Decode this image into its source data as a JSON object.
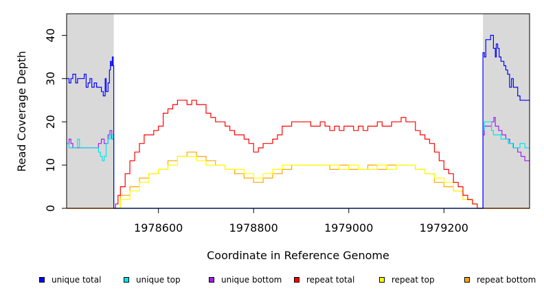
{
  "chart_data": {
    "type": "line",
    "xlabel": "Coordinate in Reference Genome",
    "ylabel": "Read Coverage Depth",
    "xlim": [
      1978407,
      1979380
    ],
    "ylim": [
      0,
      45
    ],
    "x_ticks": [
      1978600,
      1978800,
      1979000,
      1979200
    ],
    "y_ticks": [
      0,
      10,
      20,
      30,
      40
    ],
    "shaded_regions": [
      [
        1978407,
        1978506
      ],
      [
        1979282,
        1979380
      ]
    ],
    "shade_color": "#d9d9d9",
    "grid": false,
    "legend_position": "bottom",
    "series": [
      {
        "name": "unique total",
        "color": "#0000ff",
        "points": [
          [
            1978407,
            30
          ],
          [
            1978412,
            29
          ],
          [
            1978416,
            30
          ],
          [
            1978420,
            31
          ],
          [
            1978426,
            29
          ],
          [
            1978430,
            30
          ],
          [
            1978440,
            30
          ],
          [
            1978444,
            31
          ],
          [
            1978448,
            28
          ],
          [
            1978452,
            29
          ],
          [
            1978456,
            30
          ],
          [
            1978460,
            28
          ],
          [
            1978465,
            29
          ],
          [
            1978470,
            28
          ],
          [
            1978476,
            28
          ],
          [
            1978480,
            27
          ],
          [
            1978484,
            26
          ],
          [
            1978488,
            30
          ],
          [
            1978490,
            27
          ],
          [
            1978494,
            29
          ],
          [
            1978497,
            32
          ],
          [
            1978499,
            34
          ],
          [
            1978501,
            33
          ],
          [
            1978503,
            35
          ],
          [
            1978505,
            33
          ],
          [
            1978506,
            0
          ],
          [
            1979282,
            0
          ],
          [
            1979282,
            36
          ],
          [
            1979285,
            35
          ],
          [
            1979288,
            39
          ],
          [
            1979296,
            39
          ],
          [
            1979298,
            40
          ],
          [
            1979304,
            37
          ],
          [
            1979308,
            35
          ],
          [
            1979310,
            38
          ],
          [
            1979313,
            37
          ],
          [
            1979316,
            35
          ],
          [
            1979320,
            34
          ],
          [
            1979326,
            33
          ],
          [
            1979330,
            32
          ],
          [
            1979334,
            31
          ],
          [
            1979338,
            28
          ],
          [
            1979342,
            30
          ],
          [
            1979346,
            28
          ],
          [
            1979350,
            28
          ],
          [
            1979355,
            26
          ],
          [
            1979360,
            25
          ],
          [
            1979380,
            25
          ]
        ]
      },
      {
        "name": "unique top",
        "color": "#00e5ee",
        "points": [
          [
            1978407,
            15
          ],
          [
            1978412,
            14
          ],
          [
            1978430,
            16
          ],
          [
            1978434,
            14
          ],
          [
            1978470,
            14
          ],
          [
            1978474,
            13
          ],
          [
            1978478,
            12
          ],
          [
            1978482,
            11
          ],
          [
            1978486,
            12
          ],
          [
            1978490,
            15
          ],
          [
            1978494,
            16
          ],
          [
            1978497,
            17
          ],
          [
            1978500,
            16
          ],
          [
            1978503,
            17
          ],
          [
            1978506,
            0
          ],
          [
            1979282,
            0
          ],
          [
            1979282,
            18
          ],
          [
            1979285,
            20
          ],
          [
            1979300,
            18
          ],
          [
            1979304,
            17
          ],
          [
            1979320,
            16
          ],
          [
            1979335,
            15
          ],
          [
            1979345,
            14
          ],
          [
            1979360,
            15
          ],
          [
            1979370,
            14
          ],
          [
            1979380,
            14
          ]
        ]
      },
      {
        "name": "unique bottom",
        "color": "#a020f0",
        "points": [
          [
            1978407,
            15
          ],
          [
            1978412,
            16
          ],
          [
            1978416,
            15
          ],
          [
            1978420,
            14
          ],
          [
            1978470,
            14
          ],
          [
            1978474,
            15
          ],
          [
            1978480,
            16
          ],
          [
            1978486,
            15
          ],
          [
            1978490,
            15
          ],
          [
            1978494,
            17
          ],
          [
            1978498,
            18
          ],
          [
            1978502,
            16
          ],
          [
            1978506,
            0
          ],
          [
            1979282,
            0
          ],
          [
            1979282,
            17
          ],
          [
            1979285,
            19
          ],
          [
            1979300,
            20
          ],
          [
            1979305,
            21
          ],
          [
            1979308,
            19
          ],
          [
            1979315,
            18
          ],
          [
            1979322,
            17
          ],
          [
            1979330,
            16
          ],
          [
            1979338,
            15
          ],
          [
            1979346,
            14
          ],
          [
            1979355,
            13
          ],
          [
            1979362,
            12
          ],
          [
            1979370,
            11
          ],
          [
            1979380,
            11
          ]
        ]
      },
      {
        "name": "repeat total",
        "color": "#ff0000",
        "points": [
          [
            1978407,
            0
          ],
          [
            1978506,
            0
          ],
          [
            1978510,
            1
          ],
          [
            1978515,
            3
          ],
          [
            1978520,
            5
          ],
          [
            1978530,
            8
          ],
          [
            1978540,
            11
          ],
          [
            1978550,
            13
          ],
          [
            1978560,
            15
          ],
          [
            1978570,
            17
          ],
          [
            1978580,
            17
          ],
          [
            1978590,
            18
          ],
          [
            1978600,
            19
          ],
          [
            1978610,
            22
          ],
          [
            1978620,
            23
          ],
          [
            1978630,
            24
          ],
          [
            1978640,
            25
          ],
          [
            1978650,
            25
          ],
          [
            1978660,
            24
          ],
          [
            1978670,
            25
          ],
          [
            1978680,
            24
          ],
          [
            1978690,
            24
          ],
          [
            1978700,
            22
          ],
          [
            1978710,
            21
          ],
          [
            1978720,
            20
          ],
          [
            1978730,
            20
          ],
          [
            1978740,
            19
          ],
          [
            1978750,
            18
          ],
          [
            1978760,
            17
          ],
          [
            1978770,
            17
          ],
          [
            1978780,
            16
          ],
          [
            1978790,
            15
          ],
          [
            1978800,
            13
          ],
          [
            1978810,
            14
          ],
          [
            1978820,
            15
          ],
          [
            1978830,
            15
          ],
          [
            1978840,
            16
          ],
          [
            1978850,
            17
          ],
          [
            1978860,
            19
          ],
          [
            1978870,
            19
          ],
          [
            1978880,
            20
          ],
          [
            1978890,
            20
          ],
          [
            1978900,
            20
          ],
          [
            1978910,
            20
          ],
          [
            1978920,
            19
          ],
          [
            1978930,
            19
          ],
          [
            1978940,
            20
          ],
          [
            1978950,
            19
          ],
          [
            1978960,
            18
          ],
          [
            1978970,
            19
          ],
          [
            1978980,
            18
          ],
          [
            1978990,
            19
          ],
          [
            1979000,
            19
          ],
          [
            1979010,
            18
          ],
          [
            1979020,
            19
          ],
          [
            1979030,
            18
          ],
          [
            1979040,
            19
          ],
          [
            1979050,
            19
          ],
          [
            1979060,
            20
          ],
          [
            1979070,
            19
          ],
          [
            1979080,
            19
          ],
          [
            1979090,
            20
          ],
          [
            1979100,
            20
          ],
          [
            1979110,
            21
          ],
          [
            1979120,
            20
          ],
          [
            1979130,
            20
          ],
          [
            1979140,
            18
          ],
          [
            1979150,
            17
          ],
          [
            1979160,
            16
          ],
          [
            1979170,
            15
          ],
          [
            1979180,
            13
          ],
          [
            1979190,
            11
          ],
          [
            1979200,
            9
          ],
          [
            1979210,
            8
          ],
          [
            1979220,
            6
          ],
          [
            1979230,
            5
          ],
          [
            1979240,
            3
          ],
          [
            1979250,
            2
          ],
          [
            1979260,
            1
          ],
          [
            1979270,
            0
          ],
          [
            1979380,
            0
          ]
        ]
      },
      {
        "name": "repeat top",
        "color": "#ffff00",
        "points": [
          [
            1978407,
            0
          ],
          [
            1978506,
            0
          ],
          [
            1978520,
            2
          ],
          [
            1978540,
            4
          ],
          [
            1978560,
            6
          ],
          [
            1978580,
            8
          ],
          [
            1978600,
            9
          ],
          [
            1978620,
            10
          ],
          [
            1978640,
            12
          ],
          [
            1978660,
            12
          ],
          [
            1978680,
            11
          ],
          [
            1978700,
            10
          ],
          [
            1978720,
            10
          ],
          [
            1978740,
            9
          ],
          [
            1978760,
            9
          ],
          [
            1978780,
            8
          ],
          [
            1978800,
            7
          ],
          [
            1978820,
            8
          ],
          [
            1978840,
            9
          ],
          [
            1978860,
            10
          ],
          [
            1978880,
            10
          ],
          [
            1978900,
            10
          ],
          [
            1978920,
            10
          ],
          [
            1978940,
            10
          ],
          [
            1978960,
            10
          ],
          [
            1978980,
            9
          ],
          [
            1979000,
            10
          ],
          [
            1979020,
            9
          ],
          [
            1979040,
            9
          ],
          [
            1979060,
            10
          ],
          [
            1979080,
            9
          ],
          [
            1979100,
            10
          ],
          [
            1979120,
            10
          ],
          [
            1979140,
            9
          ],
          [
            1979160,
            8
          ],
          [
            1979180,
            7
          ],
          [
            1979200,
            6
          ],
          [
            1979220,
            4
          ],
          [
            1979240,
            2
          ],
          [
            1979260,
            1
          ],
          [
            1979270,
            0
          ],
          [
            1979380,
            0
          ]
        ]
      },
      {
        "name": "repeat bottom",
        "color": "#ffa500",
        "points": [
          [
            1978407,
            0
          ],
          [
            1978506,
            0
          ],
          [
            1978520,
            3
          ],
          [
            1978540,
            5
          ],
          [
            1978560,
            7
          ],
          [
            1978580,
            8
          ],
          [
            1978600,
            9
          ],
          [
            1978620,
            11
          ],
          [
            1978640,
            12
          ],
          [
            1978660,
            13
          ],
          [
            1978680,
            12
          ],
          [
            1978700,
            11
          ],
          [
            1978720,
            10
          ],
          [
            1978740,
            9
          ],
          [
            1978760,
            8
          ],
          [
            1978780,
            7
          ],
          [
            1978800,
            6
          ],
          [
            1978820,
            7
          ],
          [
            1978840,
            8
          ],
          [
            1978860,
            9
          ],
          [
            1978880,
            10
          ],
          [
            1978900,
            10
          ],
          [
            1978920,
            10
          ],
          [
            1978940,
            10
          ],
          [
            1978960,
            9
          ],
          [
            1978980,
            10
          ],
          [
            1979000,
            9
          ],
          [
            1979020,
            9
          ],
          [
            1979040,
            10
          ],
          [
            1979060,
            9
          ],
          [
            1979080,
            10
          ],
          [
            1979100,
            10
          ],
          [
            1979120,
            10
          ],
          [
            1979140,
            9
          ],
          [
            1979160,
            8
          ],
          [
            1979180,
            6
          ],
          [
            1979200,
            5
          ],
          [
            1979220,
            4
          ],
          [
            1979240,
            2
          ],
          [
            1979260,
            1
          ],
          [
            1979270,
            0
          ],
          [
            1979380,
            0
          ]
        ]
      }
    ]
  }
}
